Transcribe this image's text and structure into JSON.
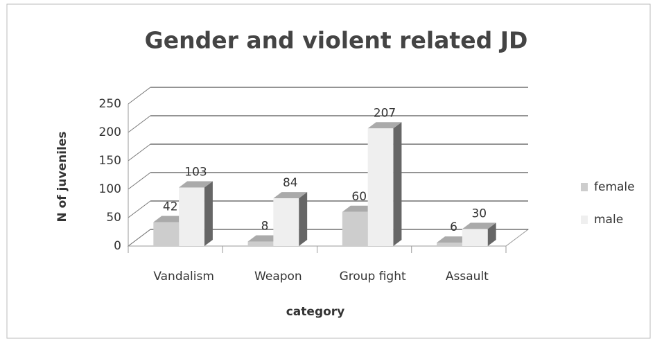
{
  "chart_data": {
    "type": "bar",
    "title": "Gender and violent related JD",
    "x_label": "category",
    "y_label": "N of juveniles",
    "categories": [
      "Vandalism",
      "Weapon",
      "Group fight",
      "Assault"
    ],
    "series": [
      {
        "name": "female",
        "color": "#cdcdcd",
        "values": [
          42,
          8,
          60,
          6
        ]
      },
      {
        "name": "male",
        "color": "#efefef",
        "values": [
          103,
          84,
          207,
          30
        ]
      }
    ],
    "ylim": [
      0,
      250
    ],
    "yticks": [
      0,
      50,
      100,
      150,
      200,
      250
    ],
    "grid": true,
    "legend": "right"
  }
}
